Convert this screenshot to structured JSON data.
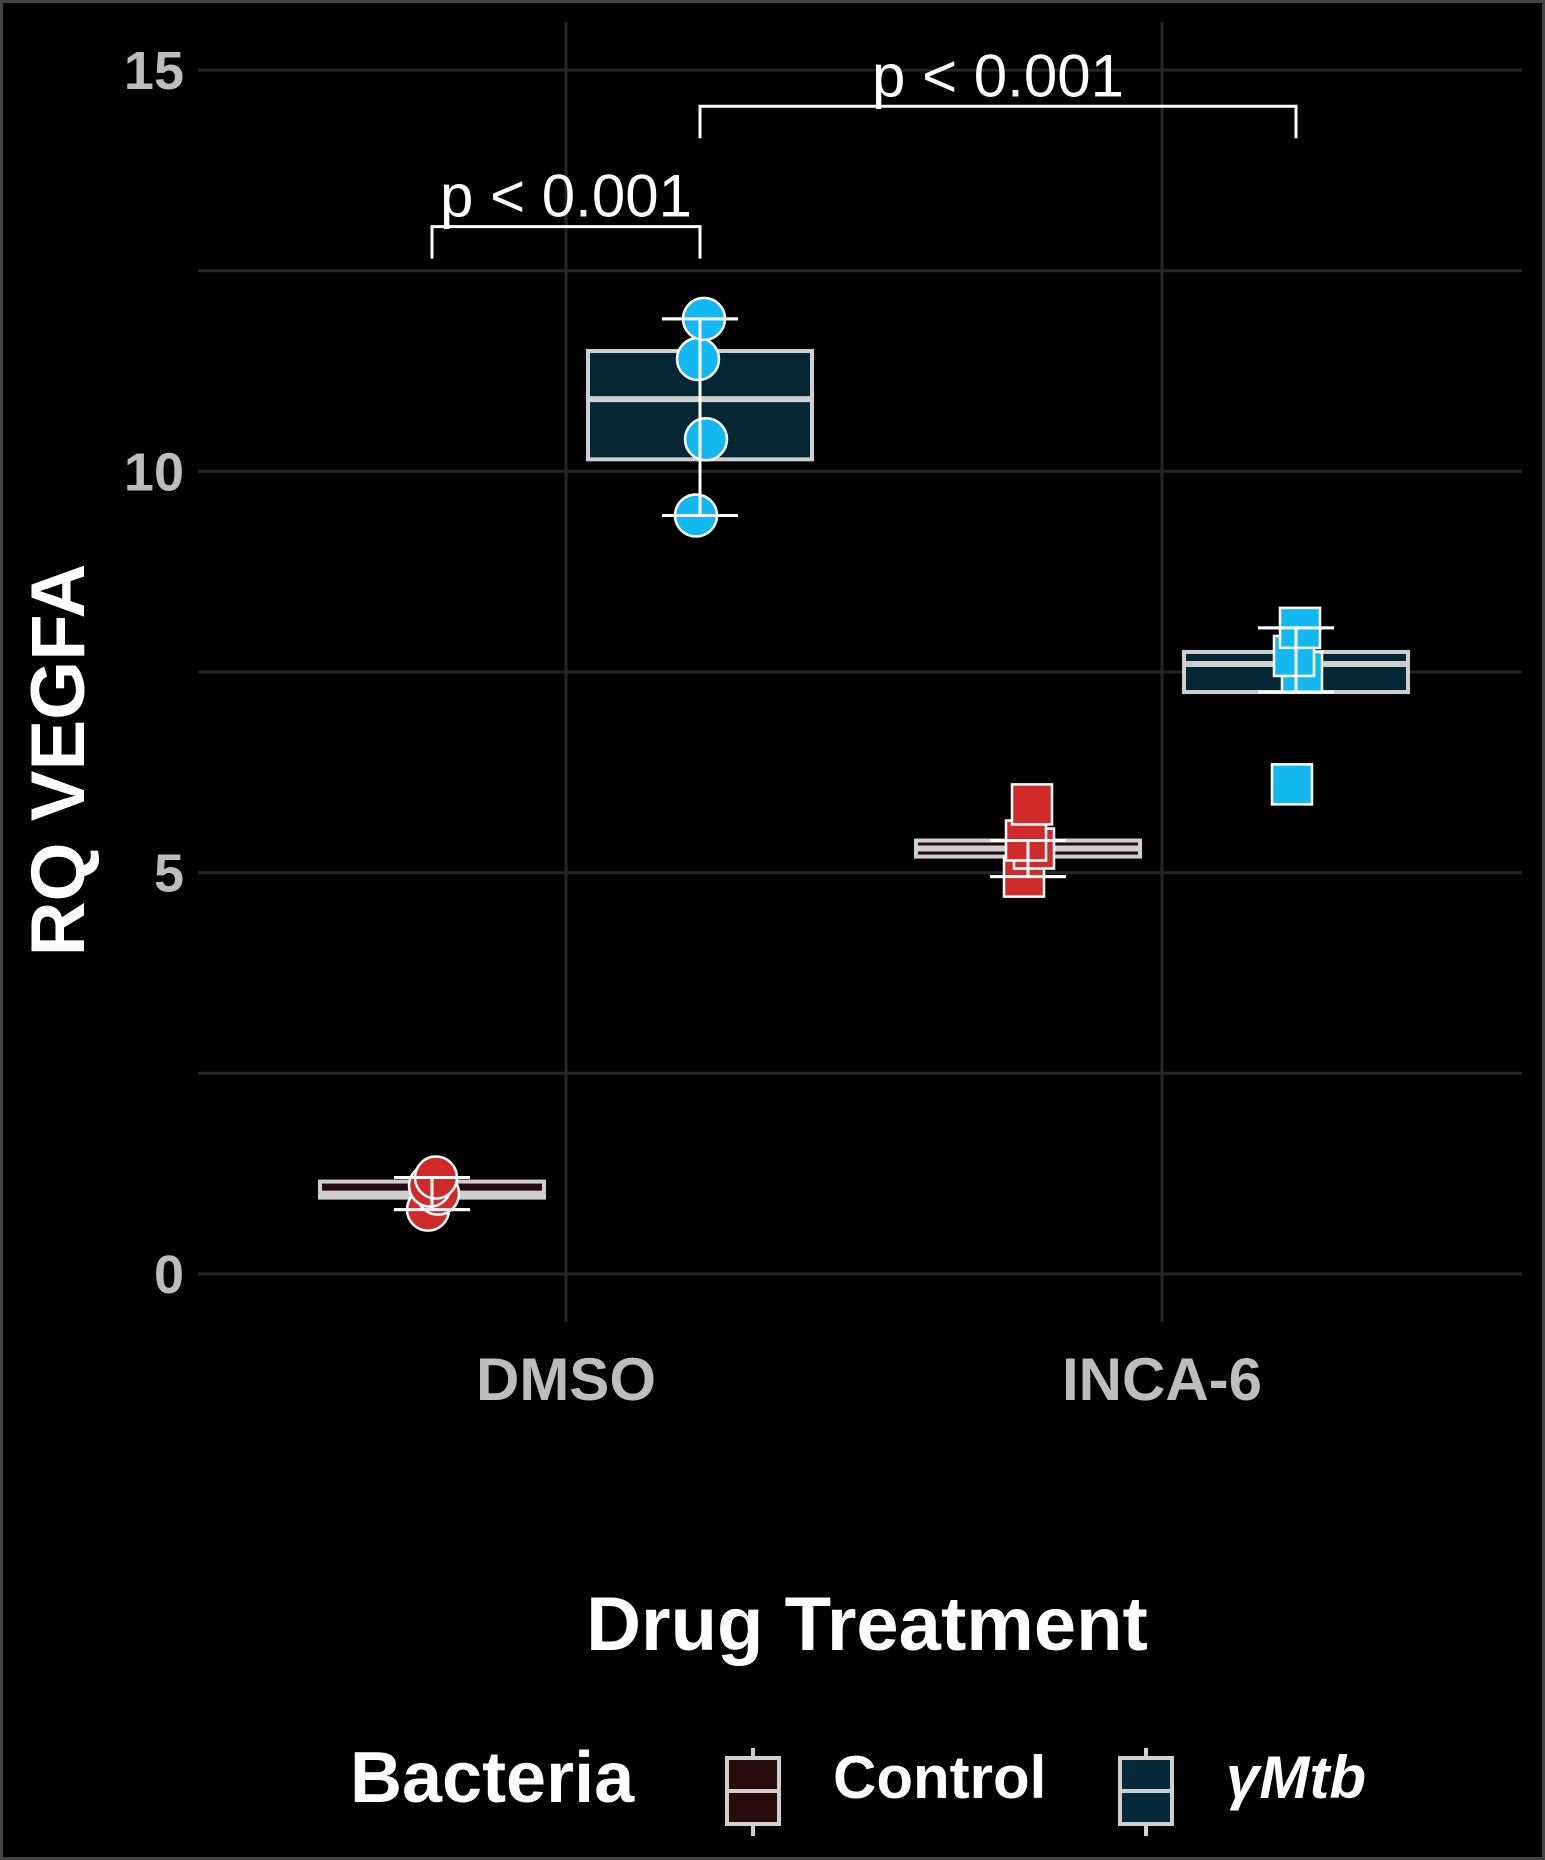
{
  "chart_data": {
    "type": "box",
    "title": "",
    "xlabel": "Drug Treatment",
    "ylabel": "RQ VEGFA",
    "categories": [
      "DMSO",
      "INCA-6"
    ],
    "ylim": [
      -0.6,
      15.6
    ],
    "yticks": [
      0,
      5,
      10,
      15
    ],
    "y_tick_labels": [
      "0",
      "5",
      "10",
      "15"
    ],
    "grid": true,
    "legend": {
      "title": "Bacteria",
      "placement": "bottom",
      "entries": [
        "Control",
        "γMtb"
      ]
    },
    "colors": {
      "background": "#000000",
      "grid": "#262626",
      "control_fill": "#2a0c0f",
      "mtb_fill": "#05293a",
      "control_point": "#d12a2a",
      "mtb_point": "#14b8f0",
      "box_stroke": "#cfcfcf"
    },
    "series": [
      {
        "name": "Control",
        "boxes": [
          {
            "category": "DMSO",
            "whisker_low": 0.8,
            "q1": 0.95,
            "median": 1.0,
            "q3": 1.15,
            "whisker_high": 1.2
          },
          {
            "category": "INCA-6",
            "whisker_low": 4.95,
            "q1": 5.2,
            "median": 5.3,
            "q3": 5.4,
            "whisker_high": 5.4
          }
        ],
        "points": [
          {
            "category": "DMSO",
            "y": 0.8,
            "shape": "circle"
          },
          {
            "category": "DMSO",
            "y": 1.0,
            "shape": "circle"
          },
          {
            "category": "DMSO",
            "y": 1.1,
            "shape": "circle"
          },
          {
            "category": "DMSO",
            "y": 1.2,
            "shape": "circle"
          },
          {
            "category": "INCA-6",
            "y": 4.95,
            "shape": "square"
          },
          {
            "category": "INCA-6",
            "y": 5.3,
            "shape": "square"
          },
          {
            "category": "INCA-6",
            "y": 5.4,
            "shape": "square"
          },
          {
            "category": "INCA-6",
            "y": 5.85,
            "shape": "square"
          }
        ]
      },
      {
        "name": "γMtb",
        "boxes": [
          {
            "category": "DMSO",
            "whisker_low": 9.45,
            "q1": 10.15,
            "median": 10.9,
            "q3": 11.5,
            "whisker_high": 11.9
          },
          {
            "category": "INCA-6",
            "whisker_low": 7.25,
            "q1": 7.25,
            "median": 7.6,
            "q3": 7.75,
            "whisker_high": 8.05
          }
        ],
        "points": [
          {
            "category": "DMSO",
            "y": 9.45,
            "shape": "circle"
          },
          {
            "category": "DMSO",
            "y": 10.4,
            "shape": "circle"
          },
          {
            "category": "DMSO",
            "y": 11.4,
            "shape": "circle"
          },
          {
            "category": "DMSO",
            "y": 11.9,
            "shape": "circle"
          },
          {
            "category": "INCA-6",
            "y": 6.1,
            "shape": "square"
          },
          {
            "category": "INCA-6",
            "y": 7.5,
            "shape": "square"
          },
          {
            "category": "INCA-6",
            "y": 7.7,
            "shape": "square"
          },
          {
            "category": "INCA-6",
            "y": 8.05,
            "shape": "square"
          }
        ]
      }
    ],
    "annotations": [
      {
        "text": "p < 0.001",
        "from": {
          "category": "DMSO",
          "series": "Control"
        },
        "to": {
          "category": "DMSO",
          "series": "γMtb"
        },
        "y": 13.05
      },
      {
        "text": "p < 0.001",
        "from": {
          "category": "DMSO",
          "series": "γMtb"
        },
        "to": {
          "category": "INCA-6",
          "series": "γMtb"
        },
        "y": 14.55
      }
    ]
  }
}
